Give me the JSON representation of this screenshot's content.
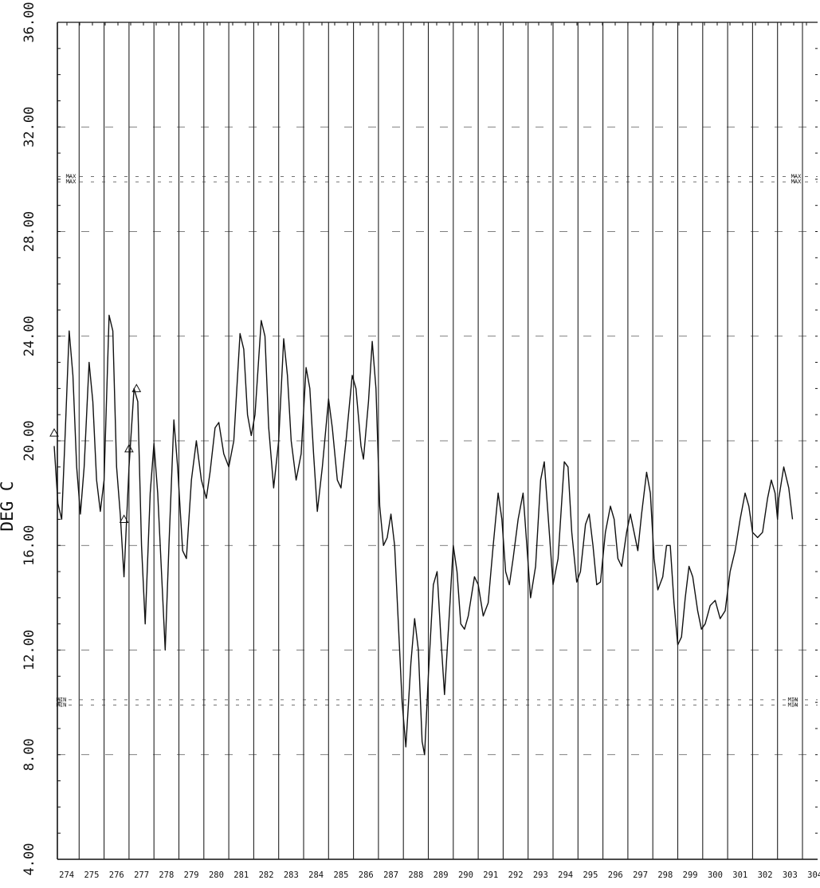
{
  "chart_data": {
    "type": "line",
    "title": "",
    "xlabel": "",
    "ylabel": "DEG C",
    "ylim": [
      4,
      36
    ],
    "xlim": [
      274,
      305
    ],
    "y_tick_labels": [
      "36.00",
      "32.00",
      "28.00",
      "24.00",
      "20.00",
      "16.00",
      "12.00",
      "8.00",
      "4.00"
    ],
    "y_ticks": [
      36,
      32,
      28,
      24,
      20,
      16,
      12,
      8,
      4
    ],
    "x_tick_labels": [
      "274",
      "275",
      "276",
      "277",
      "278",
      "279",
      "280",
      "281",
      "282",
      "283",
      "284",
      "285",
      "286",
      "287",
      "288",
      "289",
      "290",
      "291",
      "292",
      "293",
      "294",
      "295",
      "296",
      "297",
      "298",
      "299",
      "300",
      "301",
      "302",
      "303",
      "304"
    ],
    "x_ticks": [
      274,
      275,
      276,
      277,
      278,
      279,
      280,
      281,
      282,
      283,
      284,
      285,
      286,
      287,
      288,
      289,
      290,
      291,
      292,
      293,
      294,
      295,
      296,
      297,
      298,
      299,
      300,
      301,
      302,
      303,
      304
    ],
    "grid": true,
    "max_lines": [
      30.1,
      29.9
    ],
    "min_lines": [
      10.1,
      9.9
    ],
    "max_marker_label": "MAX",
    "min_marker_label": "MIN",
    "series": [
      {
        "values": [
          [
            274.0,
            19.8
          ],
          [
            274.15,
            17.6
          ],
          [
            274.3,
            17.0
          ],
          [
            274.45,
            20.5
          ],
          [
            274.6,
            24.2
          ],
          [
            274.75,
            22.5
          ],
          [
            274.9,
            19.0
          ],
          [
            275.05,
            17.2
          ],
          [
            275.2,
            19.0
          ],
          [
            275.4,
            23.0
          ],
          [
            275.55,
            21.5
          ],
          [
            275.7,
            18.5
          ],
          [
            275.85,
            17.3
          ],
          [
            276.0,
            18.5
          ],
          [
            276.2,
            24.8
          ],
          [
            276.35,
            24.2
          ],
          [
            276.5,
            19.0
          ],
          [
            276.65,
            17.2
          ],
          [
            276.8,
            14.8
          ],
          [
            277.0,
            19.0
          ],
          [
            277.2,
            22.0
          ],
          [
            277.35,
            21.5
          ],
          [
            277.5,
            16.0
          ],
          [
            277.65,
            13.0
          ],
          [
            277.85,
            18.0
          ],
          [
            278.0,
            19.9
          ],
          [
            278.15,
            18.0
          ],
          [
            278.35,
            14.0
          ],
          [
            278.45,
            12.0
          ],
          [
            278.6,
            16.0
          ],
          [
            278.8,
            20.8
          ],
          [
            278.95,
            19.0
          ],
          [
            279.15,
            15.8
          ],
          [
            279.3,
            15.5
          ],
          [
            279.5,
            18.5
          ],
          [
            279.7,
            20.0
          ],
          [
            279.9,
            18.5
          ],
          [
            280.1,
            17.8
          ],
          [
            280.25,
            18.8
          ],
          [
            280.45,
            20.5
          ],
          [
            280.6,
            20.7
          ],
          [
            280.8,
            19.5
          ],
          [
            281.0,
            19.0
          ],
          [
            281.2,
            20.0
          ],
          [
            281.45,
            24.1
          ],
          [
            281.6,
            23.5
          ],
          [
            281.75,
            21.0
          ],
          [
            281.9,
            20.2
          ],
          [
            282.05,
            21.0
          ],
          [
            282.3,
            24.6
          ],
          [
            282.45,
            24.0
          ],
          [
            282.6,
            20.5
          ],
          [
            282.8,
            18.2
          ],
          [
            283.0,
            20.0
          ],
          [
            283.2,
            23.9
          ],
          [
            283.35,
            22.5
          ],
          [
            283.5,
            20.0
          ],
          [
            283.7,
            18.5
          ],
          [
            283.9,
            19.5
          ],
          [
            284.1,
            22.8
          ],
          [
            284.25,
            22.0
          ],
          [
            284.4,
            19.5
          ],
          [
            284.55,
            17.3
          ],
          [
            284.75,
            19.0
          ],
          [
            285.0,
            21.6
          ],
          [
            285.15,
            20.5
          ],
          [
            285.35,
            18.5
          ],
          [
            285.5,
            18.2
          ],
          [
            285.7,
            20.0
          ],
          [
            285.95,
            22.5
          ],
          [
            286.1,
            22.0
          ],
          [
            286.3,
            19.8
          ],
          [
            286.4,
            19.3
          ],
          [
            286.6,
            21.5
          ],
          [
            286.75,
            23.8
          ],
          [
            286.9,
            22.0
          ],
          [
            287.05,
            17.5
          ],
          [
            287.2,
            16.0
          ],
          [
            287.35,
            16.3
          ],
          [
            287.5,
            17.2
          ],
          [
            287.65,
            16.0
          ],
          [
            287.8,
            13.0
          ],
          [
            287.95,
            10.0
          ],
          [
            288.1,
            8.3
          ],
          [
            288.3,
            11.5
          ],
          [
            288.45,
            13.2
          ],
          [
            288.6,
            12.0
          ],
          [
            288.75,
            8.5
          ],
          [
            288.85,
            8.0
          ],
          [
            289.0,
            11.0
          ],
          [
            289.2,
            14.5
          ],
          [
            289.35,
            15.0
          ],
          [
            289.5,
            12.5
          ],
          [
            289.65,
            10.3
          ],
          [
            289.85,
            13.5
          ],
          [
            290.0,
            16.0
          ],
          [
            290.15,
            15.0
          ],
          [
            290.3,
            13.0
          ],
          [
            290.45,
            12.8
          ],
          [
            290.6,
            13.3
          ],
          [
            290.85,
            14.8
          ],
          [
            291.0,
            14.5
          ],
          [
            291.2,
            13.3
          ],
          [
            291.4,
            13.8
          ],
          [
            291.6,
            16.0
          ],
          [
            291.8,
            18.0
          ],
          [
            291.95,
            17.0
          ],
          [
            292.1,
            15.0
          ],
          [
            292.25,
            14.5
          ],
          [
            292.4,
            15.5
          ],
          [
            292.6,
            17.0
          ],
          [
            292.8,
            18.0
          ],
          [
            292.95,
            16.0
          ],
          [
            293.1,
            14.0
          ],
          [
            293.3,
            15.2
          ],
          [
            293.5,
            18.5
          ],
          [
            293.65,
            19.2
          ],
          [
            293.85,
            16.5
          ],
          [
            294.0,
            14.5
          ],
          [
            294.2,
            15.5
          ],
          [
            294.45,
            19.2
          ],
          [
            294.6,
            19.0
          ],
          [
            294.75,
            16.5
          ],
          [
            294.95,
            14.6
          ],
          [
            295.1,
            15.0
          ],
          [
            295.3,
            16.8
          ],
          [
            295.45,
            17.2
          ],
          [
            295.6,
            16.0
          ],
          [
            295.75,
            14.5
          ],
          [
            295.9,
            14.6
          ],
          [
            296.1,
            16.5
          ],
          [
            296.3,
            17.5
          ],
          [
            296.45,
            17.0
          ],
          [
            296.6,
            15.5
          ],
          [
            296.75,
            15.2
          ],
          [
            296.95,
            16.5
          ],
          [
            297.1,
            17.2
          ],
          [
            297.25,
            16.5
          ],
          [
            297.4,
            15.8
          ],
          [
            297.55,
            17.2
          ],
          [
            297.75,
            18.8
          ],
          [
            297.9,
            18.0
          ],
          [
            298.05,
            15.5
          ],
          [
            298.2,
            14.3
          ],
          [
            298.4,
            14.8
          ],
          [
            298.55,
            16.0
          ],
          [
            298.7,
            16.0
          ],
          [
            298.85,
            13.8
          ],
          [
            299.0,
            12.2
          ],
          [
            299.15,
            12.5
          ],
          [
            299.3,
            14.0
          ],
          [
            299.45,
            15.2
          ],
          [
            299.6,
            14.8
          ],
          [
            299.8,
            13.5
          ],
          [
            299.95,
            12.8
          ],
          [
            300.1,
            13.0
          ],
          [
            300.3,
            13.7
          ],
          [
            300.5,
            13.9
          ],
          [
            300.7,
            13.2
          ],
          [
            300.9,
            13.5
          ],
          [
            301.1,
            15.0
          ],
          [
            301.3,
            15.8
          ],
          [
            301.5,
            17.0
          ],
          [
            301.7,
            18.0
          ],
          [
            301.85,
            17.5
          ],
          [
            302.0,
            16.5
          ],
          [
            302.2,
            16.3
          ],
          [
            302.4,
            16.5
          ],
          [
            302.6,
            17.8
          ],
          [
            302.75,
            18.5
          ],
          [
            302.9,
            18.0
          ],
          [
            303.0,
            17.0
          ],
          [
            303.05,
            17.8
          ],
          [
            303.25,
            19.0
          ],
          [
            303.45,
            18.2
          ],
          [
            303.6,
            17.0
          ]
        ]
      }
    ]
  }
}
